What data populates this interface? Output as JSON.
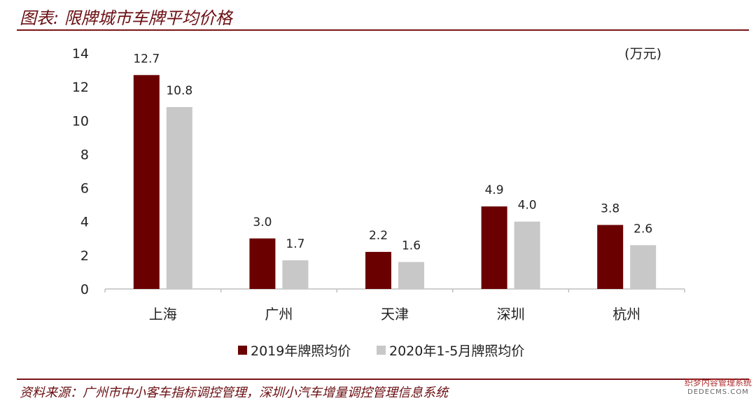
{
  "title": "图表: 限牌城市车牌平均价格",
  "source": "资料来源：广州市中小客车指标调控管理，深圳小汽车增量调控管理信息系统",
  "watermark": {
    "line1": "织梦内容管理系统",
    "line2": "DEDECMS.COM"
  },
  "colors": {
    "series1": "#6b0000",
    "series2": "#c8c8c8",
    "rule": "#7a1418"
  },
  "chart_data": {
    "type": "bar",
    "unit": "(万元)",
    "categories": [
      "上海",
      "广州",
      "天津",
      "深圳",
      "杭州"
    ],
    "series": [
      {
        "name": "2019年牌照均价",
        "values": [
          12.7,
          3.0,
          2.2,
          4.9,
          3.8
        ],
        "labels": [
          "12.7",
          "3.0",
          "2.2",
          "4.9",
          "3.8"
        ]
      },
      {
        "name": "2020年1-5月牌照均价",
        "values": [
          10.8,
          1.7,
          1.6,
          4.0,
          2.6
        ],
        "labels": [
          "10.8",
          "1.7",
          "1.6",
          "4.0",
          "2.6"
        ]
      }
    ],
    "ylim": [
      0,
      14
    ],
    "yticks": [
      "0",
      "2",
      "4",
      "6",
      "8",
      "10",
      "12",
      "14"
    ],
    "legend": "bottom"
  }
}
